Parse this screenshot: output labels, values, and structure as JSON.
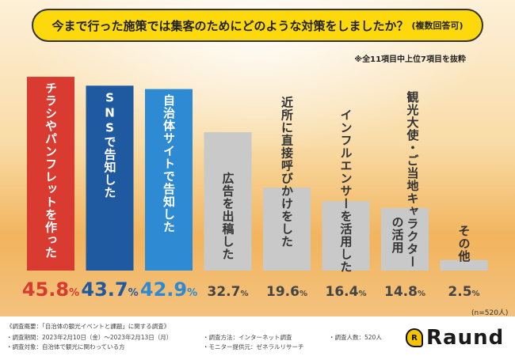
{
  "header": {
    "title": "今まで行った施策では集客のためにどのような対策をしましたか？",
    "title_note": "(複数回答可)",
    "subnote": "※全11項目中上位7項目を抜粋"
  },
  "chart_data": {
    "type": "bar",
    "categories": [
      "チラシやパンフレットを作った",
      "SNSで告知した",
      "自治体サイトで告知した",
      "広告を出稿した",
      "近所に直接呼びかけをした",
      "インフルエンサーを活用した",
      "観光大使・ご当地キャラクターの活用",
      "その他"
    ],
    "values": [
      45.8,
      43.7,
      42.9,
      32.7,
      19.6,
      16.4,
      14.8,
      2.5
    ],
    "value_labels": [
      "45.8%",
      "43.7%",
      "42.9%",
      "32.7%",
      "19.6%",
      "16.4%",
      "14.8%",
      "2.5%"
    ],
    "label_lines": [
      [
        "チラシやパンフレットを作った"
      ],
      [
        "SNSで告知した"
      ],
      [
        "自治体サイトで告知した"
      ],
      [
        "広告を出稿した"
      ],
      [
        "近所に直接呼びかけをした"
      ],
      [
        "インフルエンサーを活用した"
      ],
      [
        "観光大使・ご当地キャラクター",
        "の活用"
      ],
      [
        "その他"
      ]
    ],
    "ylim": [
      0,
      46
    ],
    "unit": "%",
    "n_label": "(n=520人)",
    "colors": [
      "#d93b30",
      "#1f5aa0",
      "#2d8ad3",
      "#c9c9c9",
      "#c9c9c9",
      "#c9c9c9",
      "#c9c9c9",
      "#c9c9c9"
    ],
    "value_colors": [
      "#d93b30",
      "#1f5aa0",
      "#2d8ad3",
      "#444444",
      "#444444",
      "#444444",
      "#444444",
      "#444444"
    ],
    "label_colors": [
      "#ffffff",
      "#ffffff",
      "#ffffff",
      "#333333",
      "#333333",
      "#333333",
      "#333333",
      "#333333"
    ]
  },
  "footer": {
    "overview": "《調査概要：「自治体の観光イベントと課題」に関する調査》",
    "period": "・調査期間：2023年2月10日（金）〜2023年2月13日（月）",
    "target": "・調査対象：自治体で観光に関わっている方",
    "method": "・調査方法：インターネット調査",
    "provider": "・モニター提供元：ゼネラルリサーチ",
    "count": "・調査人数：520人",
    "brand": "Raund",
    "brand_mark": "R"
  }
}
